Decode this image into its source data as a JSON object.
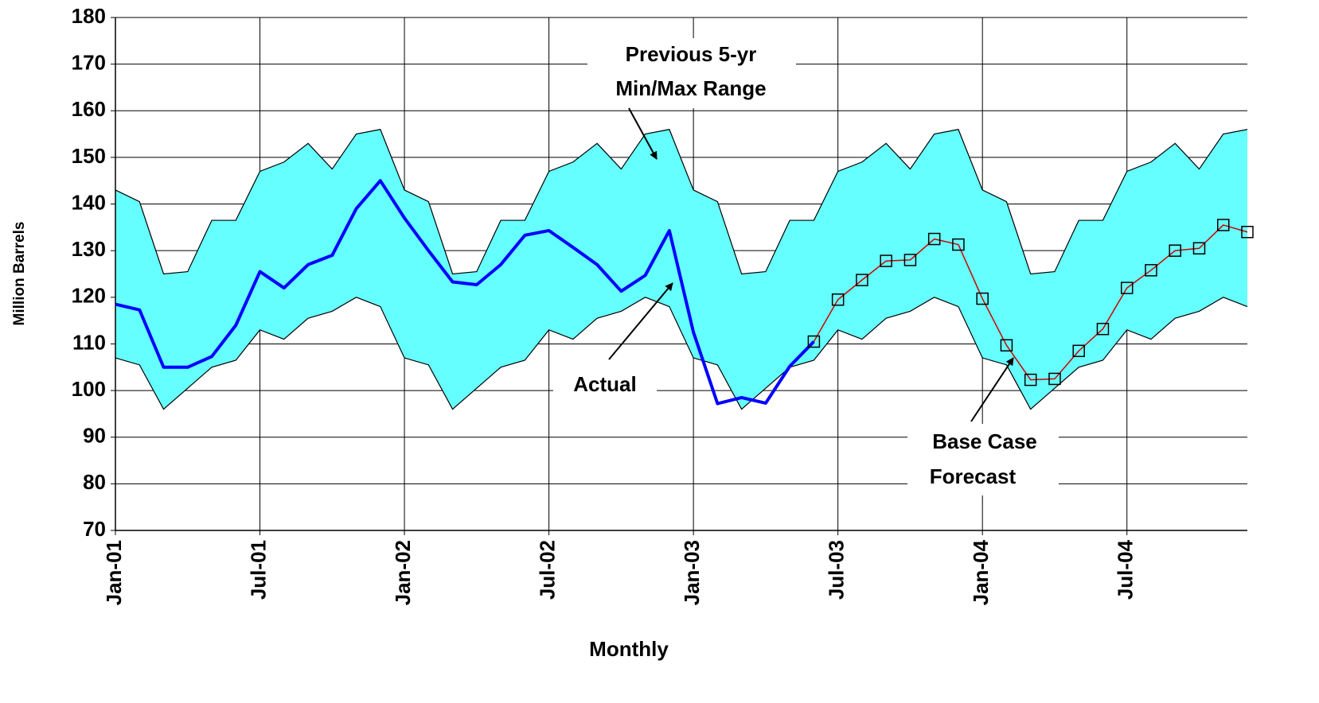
{
  "chart_data": {
    "type": "line",
    "x_label": "Monthly",
    "y_label": "Million Barrels",
    "categories": [
      "Jan-01",
      null,
      null,
      null,
      null,
      null,
      "Jul-01",
      null,
      null,
      null,
      null,
      null,
      "Jan-02",
      null,
      null,
      null,
      null,
      null,
      "Jul-02",
      null,
      null,
      null,
      null,
      null,
      "Jan-03",
      null,
      null,
      null,
      null,
      null,
      "Jul-03",
      null,
      null,
      null,
      null,
      null,
      "Jan-04",
      null,
      null,
      null,
      null,
      null,
      "Jul-04",
      null,
      null,
      null,
      null,
      null
    ],
    "band": {
      "color": "#66ffff",
      "upper": [
        143,
        140.5,
        125,
        125.5,
        136.5,
        136.5,
        147,
        149,
        153,
        147.5,
        155,
        156,
        143,
        140.5,
        125,
        125.5,
        136.5,
        136.5,
        147,
        149,
        153,
        147.5,
        155,
        156,
        143,
        140.5,
        125,
        125.5,
        136.5,
        136.5,
        147,
        149,
        153,
        147.5,
        155,
        156,
        143,
        140.5,
        125,
        125.5,
        136.5,
        136.5,
        147,
        149,
        153,
        147.5,
        155,
        156
      ],
      "lower": [
        107,
        105.5,
        96,
        100.5,
        105,
        106.5,
        113,
        111,
        115.5,
        117,
        120,
        118,
        107,
        105.5,
        96,
        100.5,
        105,
        106.5,
        113,
        111,
        115.5,
        117,
        120,
        118,
        107,
        105.5,
        96,
        100.5,
        105,
        106.5,
        113,
        111,
        115.5,
        117,
        120,
        118,
        107,
        105.5,
        96,
        100.5,
        105,
        106.5,
        113,
        111,
        115.5,
        117,
        120,
        118
      ]
    },
    "series": [
      {
        "color": "#0000ff",
        "marker": "none",
        "values": [
          118.5,
          117.3,
          105,
          105,
          107.3,
          114,
          125.5,
          122,
          127,
          129,
          139,
          145,
          137,
          130,
          123.3,
          122.7,
          127,
          133.3,
          134.3,
          130.7,
          127,
          121.3,
          124.7,
          134.3,
          112.5,
          97.2,
          98.5,
          97.3,
          105.2,
          110.5,
          null,
          null,
          null,
          null,
          null,
          null,
          null,
          null,
          null,
          null,
          null,
          null,
          null,
          null,
          null,
          null,
          null,
          null
        ]
      },
      {
        "color": "#cc0000",
        "marker": "square",
        "values": [
          null,
          null,
          null,
          null,
          null,
          null,
          null,
          null,
          null,
          null,
          null,
          null,
          null,
          null,
          null,
          null,
          null,
          null,
          null,
          null,
          null,
          null,
          null,
          null,
          null,
          null,
          null,
          null,
          null,
          110.5,
          119.5,
          123.7,
          127.8,
          128,
          132.5,
          131.3,
          119.7,
          109.7,
          102.3,
          102.5,
          108.5,
          113.2,
          122,
          125.8,
          130,
          130.5,
          135.5,
          134
        ]
      }
    ],
    "annotations": [
      "Previous 5-yr",
      "Min/Max Range",
      "Actual",
      "Base Case",
      "Forecast"
    ],
    "ylim": [
      70,
      180
    ],
    "yticks": [
      70,
      80,
      90,
      100,
      110,
      120,
      130,
      140,
      150,
      160,
      170,
      180
    ],
    "grid": true
  }
}
